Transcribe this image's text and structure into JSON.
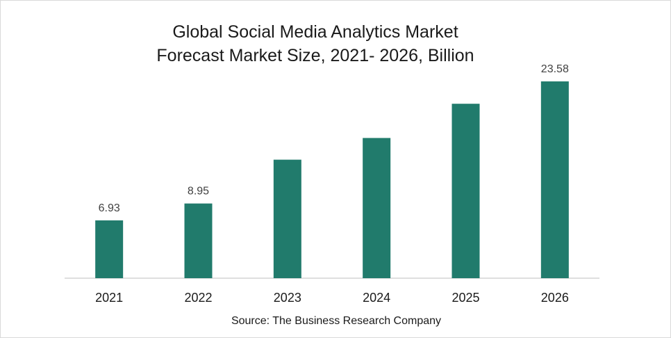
{
  "chart_data": {
    "type": "bar",
    "title": "Global Social Media Analytics Market",
    "subtitle": "Forecast Market Size, 2021- 2026, Billion",
    "categories": [
      "2021",
      "2022",
      "2023",
      "2024",
      "2025",
      "2026"
    ],
    "values": [
      6.93,
      8.95,
      14.2,
      16.8,
      20.9,
      23.58
    ],
    "data_labels": [
      "6.93",
      "8.95",
      "",
      "",
      "",
      "23.58"
    ],
    "xlabel": "",
    "ylabel": "",
    "ylim": [
      0,
      25
    ],
    "grid": false,
    "legend": "none",
    "bar_color": "#217b6c",
    "source": "Source: The Business Research Company"
  }
}
